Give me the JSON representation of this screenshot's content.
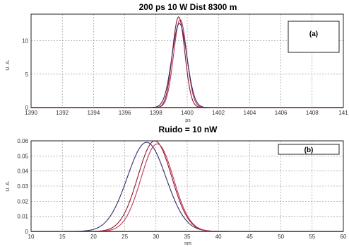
{
  "chart_data": [
    {
      "type": "line",
      "title": "200 ps 10 W    Dist 8300 m",
      "xlabel": "ps",
      "ylabel": "U. A.",
      "xlim": [
        1390,
        1410
      ],
      "ylim": [
        0,
        14
      ],
      "x_ticks": [
        "1390",
        "1392",
        "1394",
        "1396",
        "1398",
        "1400",
        "1402",
        "1404",
        "1406",
        "1408",
        "141"
      ],
      "y_ticks": [
        "0",
        "5",
        "10"
      ],
      "legend": {
        "label": "(a)",
        "position": "top-right"
      },
      "grid": true,
      "series": [
        {
          "color": "#8b1a2a",
          "peak": 13.6,
          "center": 1399.45,
          "width": 0.4
        },
        {
          "color": "#c0395a",
          "peak": 13.2,
          "center": 1399.55,
          "width": 0.42
        },
        {
          "color": "#3a2a6a",
          "peak": 12.6,
          "center": 1399.5,
          "width": 0.48
        }
      ],
      "baseline": {
        "color": "#cc2222",
        "value": 0
      }
    },
    {
      "type": "line",
      "title": "Ruido = 10 nW",
      "xlabel": "nm",
      "ylabel": "U. A.",
      "xlim": [
        10,
        60
      ],
      "ylim": [
        0,
        0.06
      ],
      "x_ticks": [
        "10",
        "15",
        "20",
        "25",
        "30",
        "35",
        "40",
        "45",
        "50",
        "55",
        "60"
      ],
      "y_ticks": [
        "0",
        "0.01",
        "0.02",
        "0.03",
        "0.04",
        "0.05",
        "0.06"
      ],
      "legend": {
        "label": "(b)",
        "position": "top-right"
      },
      "grid": true,
      "series": [
        {
          "color": "#3a2a6a",
          "peak": 0.059,
          "center": 28.5,
          "width": 3.1
        },
        {
          "color": "#8b1a2a",
          "peak": 0.06,
          "center": 29.8,
          "width": 2.7
        },
        {
          "color": "#c0395a",
          "peak": 0.058,
          "center": 30.2,
          "width": 2.6
        }
      ],
      "baseline": {
        "color": "#cc2222",
        "value": 0
      }
    }
  ]
}
